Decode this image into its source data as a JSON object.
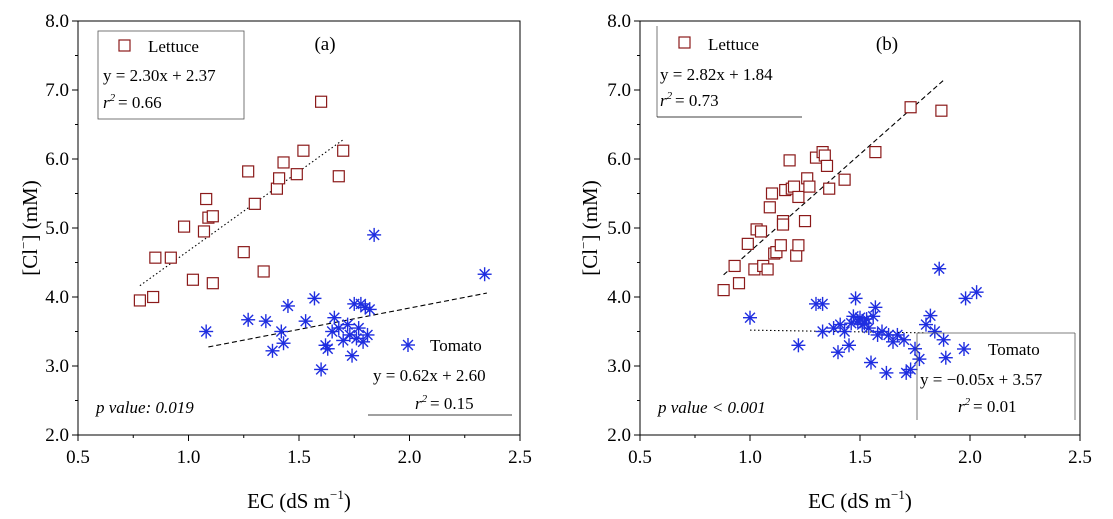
{
  "chart_data": [
    {
      "type": "scatter",
      "panel_label": "(a)",
      "xlabel": "EC (dS m⁻¹)",
      "ylabel": "[Cl⁻] (mM)",
      "xlim": [
        0.5,
        2.5
      ],
      "ylim": [
        2.0,
        8.0
      ],
      "xticks": [
        "0.5",
        "1.0",
        "1.5",
        "2.0",
        "2.5"
      ],
      "yticks": [
        "2.0",
        "3.0",
        "4.0",
        "5.0",
        "6.0",
        "7.0",
        "8.0"
      ],
      "p_value_text": "p value: 0.019",
      "series": [
        {
          "name": "Lettuce",
          "marker": "square",
          "color": "#8b1a1a",
          "equation": "y = 2.30x + 2.37",
          "r2_value": "= 0.66",
          "fit_style": "dotted",
          "fit": {
            "slope": 2.3,
            "intercept": 2.37,
            "x_range": [
              0.78,
              1.7
            ]
          },
          "points": [
            [
              0.78,
              3.95
            ],
            [
              0.84,
              4.0
            ],
            [
              0.85,
              4.57
            ],
            [
              0.92,
              4.57
            ],
            [
              0.98,
              5.02
            ],
            [
              1.02,
              4.25
            ],
            [
              1.07,
              4.95
            ],
            [
              1.08,
              5.42
            ],
            [
              1.09,
              5.15
            ],
            [
              1.11,
              5.17
            ],
            [
              1.11,
              4.2
            ],
            [
              1.25,
              4.65
            ],
            [
              1.27,
              5.82
            ],
            [
              1.3,
              5.35
            ],
            [
              1.34,
              4.37
            ],
            [
              1.4,
              5.57
            ],
            [
              1.41,
              5.72
            ],
            [
              1.43,
              5.95
            ],
            [
              1.49,
              5.78
            ],
            [
              1.52,
              6.12
            ],
            [
              1.6,
              6.83
            ],
            [
              1.68,
              5.75
            ],
            [
              1.7,
              6.12
            ]
          ]
        },
        {
          "name": "Tomato",
          "marker": "asterisk",
          "color": "#1f2ee0",
          "equation": "y = 0.62x + 2.60",
          "r2_value": "= 0.15",
          "fit_style": "dashed",
          "fit": {
            "slope": 0.62,
            "intercept": 2.6,
            "x_range": [
              1.09,
              2.35
            ]
          },
          "points": [
            [
              1.08,
              3.5
            ],
            [
              1.27,
              3.67
            ],
            [
              1.35,
              3.65
            ],
            [
              1.38,
              3.22
            ],
            [
              1.42,
              3.5
            ],
            [
              1.43,
              3.33
            ],
            [
              1.45,
              3.87
            ],
            [
              1.53,
              3.65
            ],
            [
              1.57,
              3.98
            ],
            [
              1.6,
              2.95
            ],
            [
              1.62,
              3.3
            ],
            [
              1.63,
              3.25
            ],
            [
              1.65,
              3.5
            ],
            [
              1.66,
              3.7
            ],
            [
              1.68,
              3.55
            ],
            [
              1.7,
              3.37
            ],
            [
              1.72,
              3.6
            ],
            [
              1.73,
              3.45
            ],
            [
              1.74,
              3.15
            ],
            [
              1.75,
              3.9
            ],
            [
              1.76,
              3.4
            ],
            [
              1.77,
              3.55
            ],
            [
              1.78,
              3.9
            ],
            [
              1.79,
              3.35
            ],
            [
              1.8,
              3.85
            ],
            [
              1.81,
              3.45
            ],
            [
              1.82,
              3.82
            ],
            [
              1.84,
              4.9
            ],
            [
              2.34,
              4.33
            ]
          ]
        }
      ]
    },
    {
      "type": "scatter",
      "panel_label": "(b)",
      "xlabel": "EC (dS m⁻¹)",
      "ylabel": "[Cl⁻] (mM)",
      "xlim": [
        0.5,
        2.5
      ],
      "ylim": [
        2.0,
        8.0
      ],
      "xticks": [
        "0.5",
        "1.0",
        "1.5",
        "2.0",
        "2.5"
      ],
      "yticks": [
        "2.0",
        "3.0",
        "4.0",
        "5.0",
        "6.0",
        "7.0",
        "8.0"
      ],
      "p_value_text": "p value < 0.001",
      "series": [
        {
          "name": "Lettuce",
          "marker": "square",
          "color": "#8b1a1a",
          "equation": "y = 2.82x + 1.84",
          "r2_value": "= 0.73",
          "fit_style": "dashed",
          "fit": {
            "slope": 2.82,
            "intercept": 1.84,
            "x_range": [
              0.88,
              1.88
            ]
          },
          "points": [
            [
              0.88,
              4.1
            ],
            [
              0.93,
              4.45
            ],
            [
              0.95,
              4.2
            ],
            [
              0.99,
              4.77
            ],
            [
              1.02,
              4.4
            ],
            [
              1.03,
              4.98
            ],
            [
              1.05,
              4.95
            ],
            [
              1.06,
              4.45
            ],
            [
              1.08,
              4.4
            ],
            [
              1.09,
              5.3
            ],
            [
              1.1,
              5.5
            ],
            [
              1.11,
              4.63
            ],
            [
              1.12,
              4.65
            ],
            [
              1.14,
              4.75
            ],
            [
              1.15,
              5.1
            ],
            [
              1.15,
              5.05
            ],
            [
              1.16,
              5.55
            ],
            [
              1.18,
              5.98
            ],
            [
              1.19,
              5.57
            ],
            [
              1.2,
              5.6
            ],
            [
              1.21,
              4.6
            ],
            [
              1.22,
              4.75
            ],
            [
              1.22,
              5.45
            ],
            [
              1.25,
              5.1
            ],
            [
              1.26,
              5.72
            ],
            [
              1.27,
              5.6
            ],
            [
              1.3,
              6.02
            ],
            [
              1.33,
              6.1
            ],
            [
              1.34,
              6.05
            ],
            [
              1.35,
              5.9
            ],
            [
              1.36,
              5.57
            ],
            [
              1.43,
              5.7
            ],
            [
              1.57,
              6.1
            ],
            [
              1.73,
              6.75
            ],
            [
              1.87,
              6.7
            ]
          ]
        },
        {
          "name": "Tomato",
          "marker": "asterisk",
          "color": "#1f2ee0",
          "equation": "y = −0.05x + 3.57",
          "r2_value": "= 0.01",
          "fit_style": "dotted",
          "fit": {
            "slope": -0.05,
            "intercept": 3.57,
            "x_range": [
              1.0,
              1.8
            ]
          },
          "points": [
            [
              1.0,
              3.7
            ],
            [
              1.22,
              3.3
            ],
            [
              1.3,
              3.9
            ],
            [
              1.33,
              3.9
            ],
            [
              1.33,
              3.5
            ],
            [
              1.38,
              3.55
            ],
            [
              1.4,
              3.2
            ],
            [
              1.41,
              3.6
            ],
            [
              1.43,
              3.5
            ],
            [
              1.45,
              3.3
            ],
            [
              1.46,
              3.62
            ],
            [
              1.47,
              3.72
            ],
            [
              1.48,
              3.98
            ],
            [
              1.49,
              3.65
            ],
            [
              1.5,
              3.7
            ],
            [
              1.51,
              3.6
            ],
            [
              1.52,
              3.62
            ],
            [
              1.53,
              3.68
            ],
            [
              1.54,
              3.55
            ],
            [
              1.55,
              3.05
            ],
            [
              1.56,
              3.72
            ],
            [
              1.57,
              3.85
            ],
            [
              1.58,
              3.45
            ],
            [
              1.6,
              3.5
            ],
            [
              1.62,
              2.9
            ],
            [
              1.63,
              3.45
            ],
            [
              1.65,
              3.35
            ],
            [
              1.67,
              3.45
            ],
            [
              1.7,
              3.38
            ],
            [
              1.71,
              2.9
            ],
            [
              1.73,
              2.95
            ],
            [
              1.75,
              3.25
            ],
            [
              1.77,
              3.1
            ],
            [
              1.8,
              3.6
            ],
            [
              1.82,
              3.73
            ],
            [
              1.84,
              3.5
            ],
            [
              1.86,
              4.41
            ],
            [
              1.88,
              3.38
            ],
            [
              1.89,
              3.12
            ],
            [
              1.98,
              3.98
            ],
            [
              2.03,
              4.07
            ]
          ]
        }
      ]
    }
  ]
}
